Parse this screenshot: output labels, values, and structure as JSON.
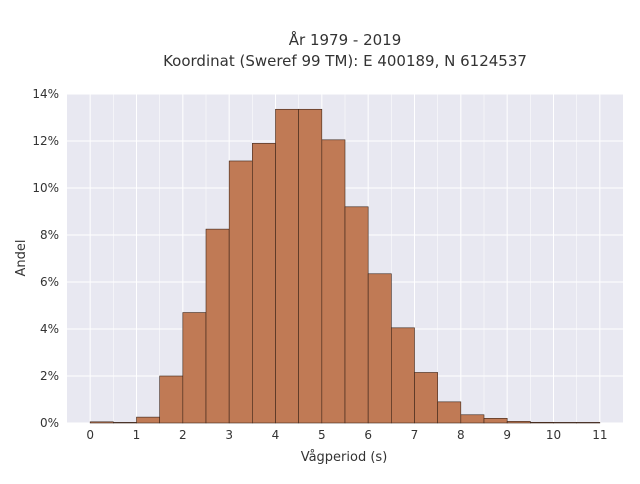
{
  "chart_data": {
    "type": "bar",
    "title_line1": "År 1979 - 2019",
    "title_line2": "Koordinat (Sweref 99 TM): E 400189, N 6124537",
    "xlabel": "Vågperiod (s)",
    "ylabel": "Andel",
    "xlim": [
      -0.5,
      11.5
    ],
    "ylim": [
      0,
      14
    ],
    "x_ticks": [
      0,
      1,
      2,
      3,
      4,
      5,
      6,
      7,
      8,
      9,
      10,
      11
    ],
    "y_ticks": [
      0,
      2,
      4,
      6,
      8,
      10,
      12,
      14
    ],
    "y_tick_suffix": "%",
    "bin_width": 0.5,
    "bins": [
      {
        "x0": 0.0,
        "value": 0.05
      },
      {
        "x0": 0.5,
        "value": 0.0
      },
      {
        "x0": 1.0,
        "value": 0.25
      },
      {
        "x0": 1.5,
        "value": 2.0
      },
      {
        "x0": 2.0,
        "value": 4.7
      },
      {
        "x0": 2.5,
        "value": 8.25
      },
      {
        "x0": 3.0,
        "value": 11.15
      },
      {
        "x0": 3.5,
        "value": 11.9
      },
      {
        "x0": 4.0,
        "value": 13.35
      },
      {
        "x0": 4.5,
        "value": 13.35
      },
      {
        "x0": 5.0,
        "value": 12.05
      },
      {
        "x0": 5.5,
        "value": 9.2
      },
      {
        "x0": 6.0,
        "value": 6.35
      },
      {
        "x0": 6.5,
        "value": 4.05
      },
      {
        "x0": 7.0,
        "value": 2.15
      },
      {
        "x0": 7.5,
        "value": 0.9
      },
      {
        "x0": 8.0,
        "value": 0.35
      },
      {
        "x0": 8.5,
        "value": 0.2
      },
      {
        "x0": 9.0,
        "value": 0.07
      },
      {
        "x0": 9.5,
        "value": 0.03
      },
      {
        "x0": 10.0,
        "value": 0.02
      },
      {
        "x0": 10.5,
        "value": 0.01
      }
    ],
    "grid": true,
    "colors": {
      "bar_fill": "#c07a55",
      "bar_stroke": "#3b2418",
      "plot_bg": "#e8e8f1",
      "grid": "#ffffff"
    }
  }
}
